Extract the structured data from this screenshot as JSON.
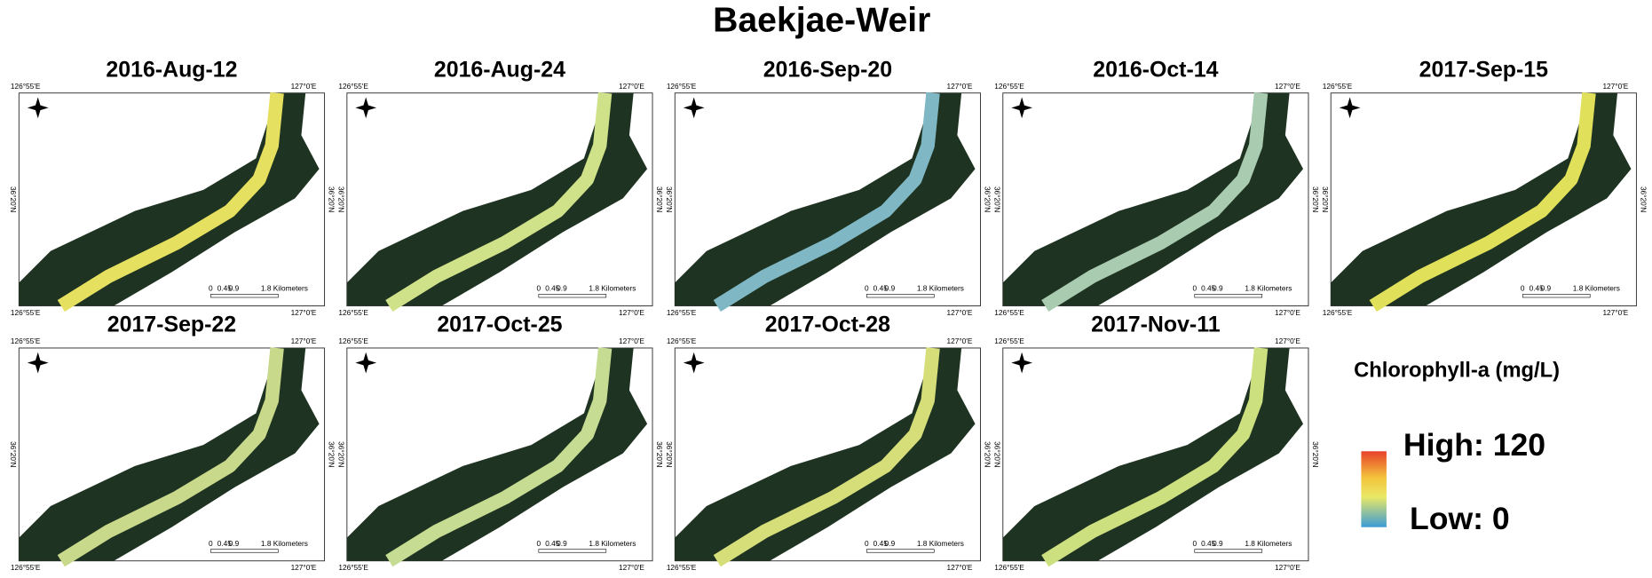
{
  "title": "Baekjae-Weir",
  "coords": {
    "lon_left": "126°55'E",
    "lon_right": "127°0'E",
    "lat": "36°20'N"
  },
  "scale_bar": {
    "ticks": [
      "0",
      "0.45",
      "0.9"
    ],
    "end": "1.8 Kilometers"
  },
  "panels": [
    {
      "date": "2016-Aug-12",
      "river_color": "#e6e060"
    },
    {
      "date": "2016-Aug-24",
      "river_color": "#cfe28a"
    },
    {
      "date": "2016-Sep-20",
      "river_color": "#7fb8c4"
    },
    {
      "date": "2016-Oct-14",
      "river_color": "#a9cbb0"
    },
    {
      "date": "2017-Sep-15",
      "river_color": "#e0e05a"
    },
    {
      "date": "2017-Sep-22",
      "river_color": "#c9d98c"
    },
    {
      "date": "2017-Oct-25",
      "river_color": "#c6dc92"
    },
    {
      "date": "2017-Oct-28",
      "river_color": "#d6de7a"
    },
    {
      "date": "2017-Nov-11",
      "river_color": "#cde080"
    }
  ],
  "legend": {
    "title": "Chlorophyll-a (mg/L)",
    "high": "High: 120",
    "low": "Low: 0"
  }
}
